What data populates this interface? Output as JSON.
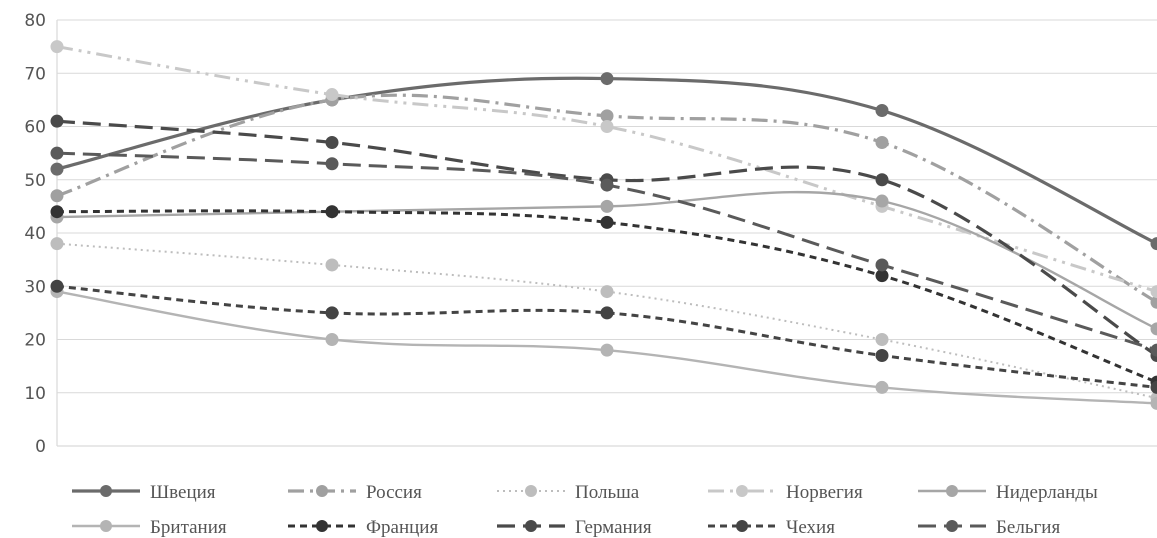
{
  "chart_data": {
    "type": "line",
    "title": "",
    "xlabel": "",
    "ylabel": "",
    "ylim": [
      0,
      80
    ],
    "yticks": [
      "0",
      "10",
      "20",
      "30",
      "40",
      "50",
      "60",
      "70",
      "80"
    ],
    "grid": true,
    "legend_position": "bottom",
    "series": [
      {
        "name": "Швеция",
        "values": [
          52,
          65,
          69,
          63,
          38
        ],
        "color": "#6b6b6b",
        "dash": "solid",
        "width": 3.2
      },
      {
        "name": "Россия",
        "values": [
          47,
          65,
          62,
          57,
          27
        ],
        "color": "#a0a0a0",
        "dash": "dashdot",
        "width": 3.2
      },
      {
        "name": "Польша",
        "values": [
          38,
          34,
          29,
          20,
          9
        ],
        "color": "#bdbdbd",
        "dash": "dot",
        "width": 2
      },
      {
        "name": "Норвегия",
        "values": [
          75,
          66,
          60,
          45,
          29
        ],
        "color": "#c8c8c8",
        "dash": "dashdotdot",
        "width": 3
      },
      {
        "name": "Нидерланды",
        "values": [
          43,
          44,
          45,
          46,
          22
        ],
        "color": "#a6a6a6",
        "dash": "solid",
        "width": 2.4
      },
      {
        "name": "Британия",
        "values": [
          29,
          20,
          18,
          11,
          8
        ],
        "color": "#b4b4b4",
        "dash": "solid",
        "width": 2.4
      },
      {
        "name": "Франция",
        "values": [
          44,
          44,
          42,
          32,
          12
        ],
        "color": "#333333",
        "dash": "shortdash",
        "width": 3
      },
      {
        "name": "Германия",
        "values": [
          61,
          57,
          50,
          50,
          17
        ],
        "color": "#4a4a4a",
        "dash": "longdash",
        "width": 3.2
      },
      {
        "name": "Чехия",
        "values": [
          30,
          25,
          25,
          17,
          11
        ],
        "color": "#444444",
        "dash": "shortdash",
        "width": 3
      },
      {
        "name": "Бельгия",
        "values": [
          55,
          53,
          49,
          34,
          18
        ],
        "color": "#5a5a5a",
        "dash": "longdash",
        "width": 3
      }
    ]
  }
}
